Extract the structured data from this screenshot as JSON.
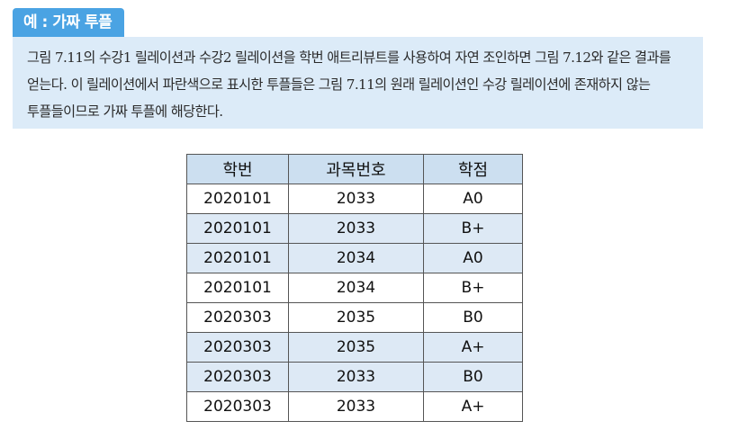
{
  "example": {
    "tab_label": "예 : 가짜 투플",
    "body_text": "그림 7.11의 수강1 릴레이션과 수강2 릴레이션을 학번 애트리뷰트를 사용하여 자연 조인하면 그림 7.12와 같은 결과를 얻는다. 이 릴레이션에서 파란색으로 표시한 투플들은 그림 7.11의 원래 릴레이션인 수강 릴레이션에 존재하지 않는 투플들이므로 가짜 투플에 해당한다."
  },
  "colors": {
    "tab_bg": "#4aa3e3",
    "body_bg": "#dcebf8",
    "header_bg": "#ccdff0",
    "shaded_row_bg": "#dde9f5"
  },
  "table": {
    "headers": [
      "학번",
      "과목번호",
      "학점"
    ],
    "rows": [
      {
        "cells": [
          "2020101",
          "2033",
          "A0"
        ],
        "shaded": false
      },
      {
        "cells": [
          "2020101",
          "2033",
          "B+"
        ],
        "shaded": true
      },
      {
        "cells": [
          "2020101",
          "2034",
          "A0"
        ],
        "shaded": true
      },
      {
        "cells": [
          "2020101",
          "2034",
          "B+"
        ],
        "shaded": false
      },
      {
        "cells": [
          "2020303",
          "2035",
          "B0"
        ],
        "shaded": false
      },
      {
        "cells": [
          "2020303",
          "2035",
          "A+"
        ],
        "shaded": true
      },
      {
        "cells": [
          "2020303",
          "2033",
          "B0"
        ],
        "shaded": true
      },
      {
        "cells": [
          "2020303",
          "2033",
          "A+"
        ],
        "shaded": false
      }
    ]
  }
}
